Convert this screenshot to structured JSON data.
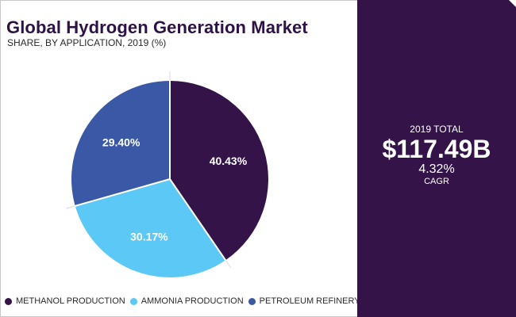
{
  "header": {
    "title": "Global Hydrogen Generation Market",
    "subtitle": "SHARE, BY APPLICATION, 2019 (%)"
  },
  "chart_data": {
    "type": "pie",
    "title": "Global Hydrogen Generation Market",
    "subtitle": "SHARE, BY APPLICATION, 2019 (%)",
    "slices": [
      {
        "name": "METHANOL PRODUCTION",
        "value": 40.43,
        "label": "40.43%",
        "color": "#341448"
      },
      {
        "name": "AMMONIA PRODUCTION",
        "value": 30.17,
        "label": "30.17%",
        "color": "#5bc8f5"
      },
      {
        "name": "PETROLEUM REFINERY",
        "value": 29.4,
        "label": "29.40%",
        "color": "#3a58a6"
      }
    ],
    "legend_position": "bottom"
  },
  "summary": {
    "total_label": "2019 TOTAL",
    "total_value": "$117.49B",
    "cagr_value": "4.32%",
    "cagr_label": "CAGR"
  },
  "colors": {
    "panel": "#341448",
    "methanol": "#341448",
    "ammonia": "#5bc8f5",
    "refinery": "#3a58a6"
  }
}
